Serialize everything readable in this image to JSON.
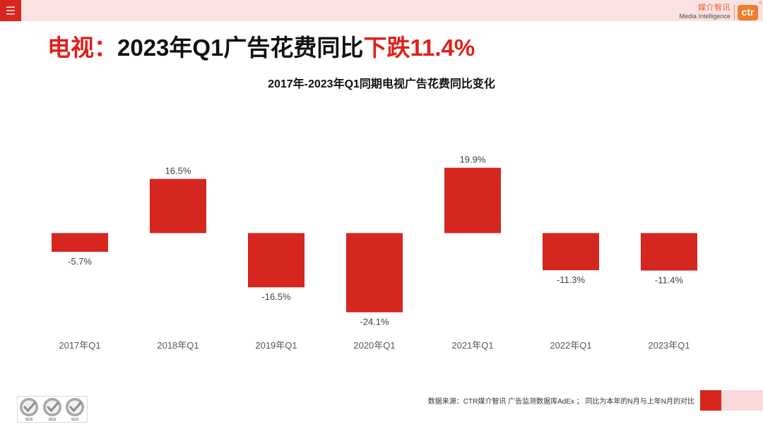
{
  "header": {
    "brand_cn": "媒介智讯",
    "brand_en": "Media Intelligence",
    "logo_text": "ctr",
    "logo_mark": "®"
  },
  "title": {
    "prefix": "电视：",
    "middle": "2023年Q1广告花费同比",
    "highlight": "下跌11.4%"
  },
  "chart_data": {
    "type": "bar",
    "title": "2017年-2023年Q1同期电视广告花费同比变化",
    "categories": [
      "2017年Q1",
      "2018年Q1",
      "2019年Q1",
      "2020年Q1",
      "2021年Q1",
      "2022年Q1",
      "2023年Q1"
    ],
    "values": [
      -5.7,
      16.5,
      -16.5,
      -24.1,
      19.9,
      -11.3,
      -11.4
    ],
    "labels": [
      "-5.7%",
      "16.5%",
      "-16.5%",
      "-24.1%",
      "19.9%",
      "-11.3%",
      "-11.4%"
    ],
    "ylim": [
      -30,
      25
    ],
    "grid": false,
    "show_legend": false
  },
  "footer": {
    "source": "数据来源：CTR媒介智讯 广告监测数据库AdEx ； 同比为本年的N月与上年N月的对比",
    "certification_mark": "SGS"
  },
  "icons": {
    "menu": "hamburger-menu-icon",
    "certification": "checkmark-icon"
  },
  "colors": {
    "accent": "#e0201b",
    "bar": "#d52620",
    "band": "#fbe2e2",
    "brand_orange": "#ef7d2d"
  }
}
